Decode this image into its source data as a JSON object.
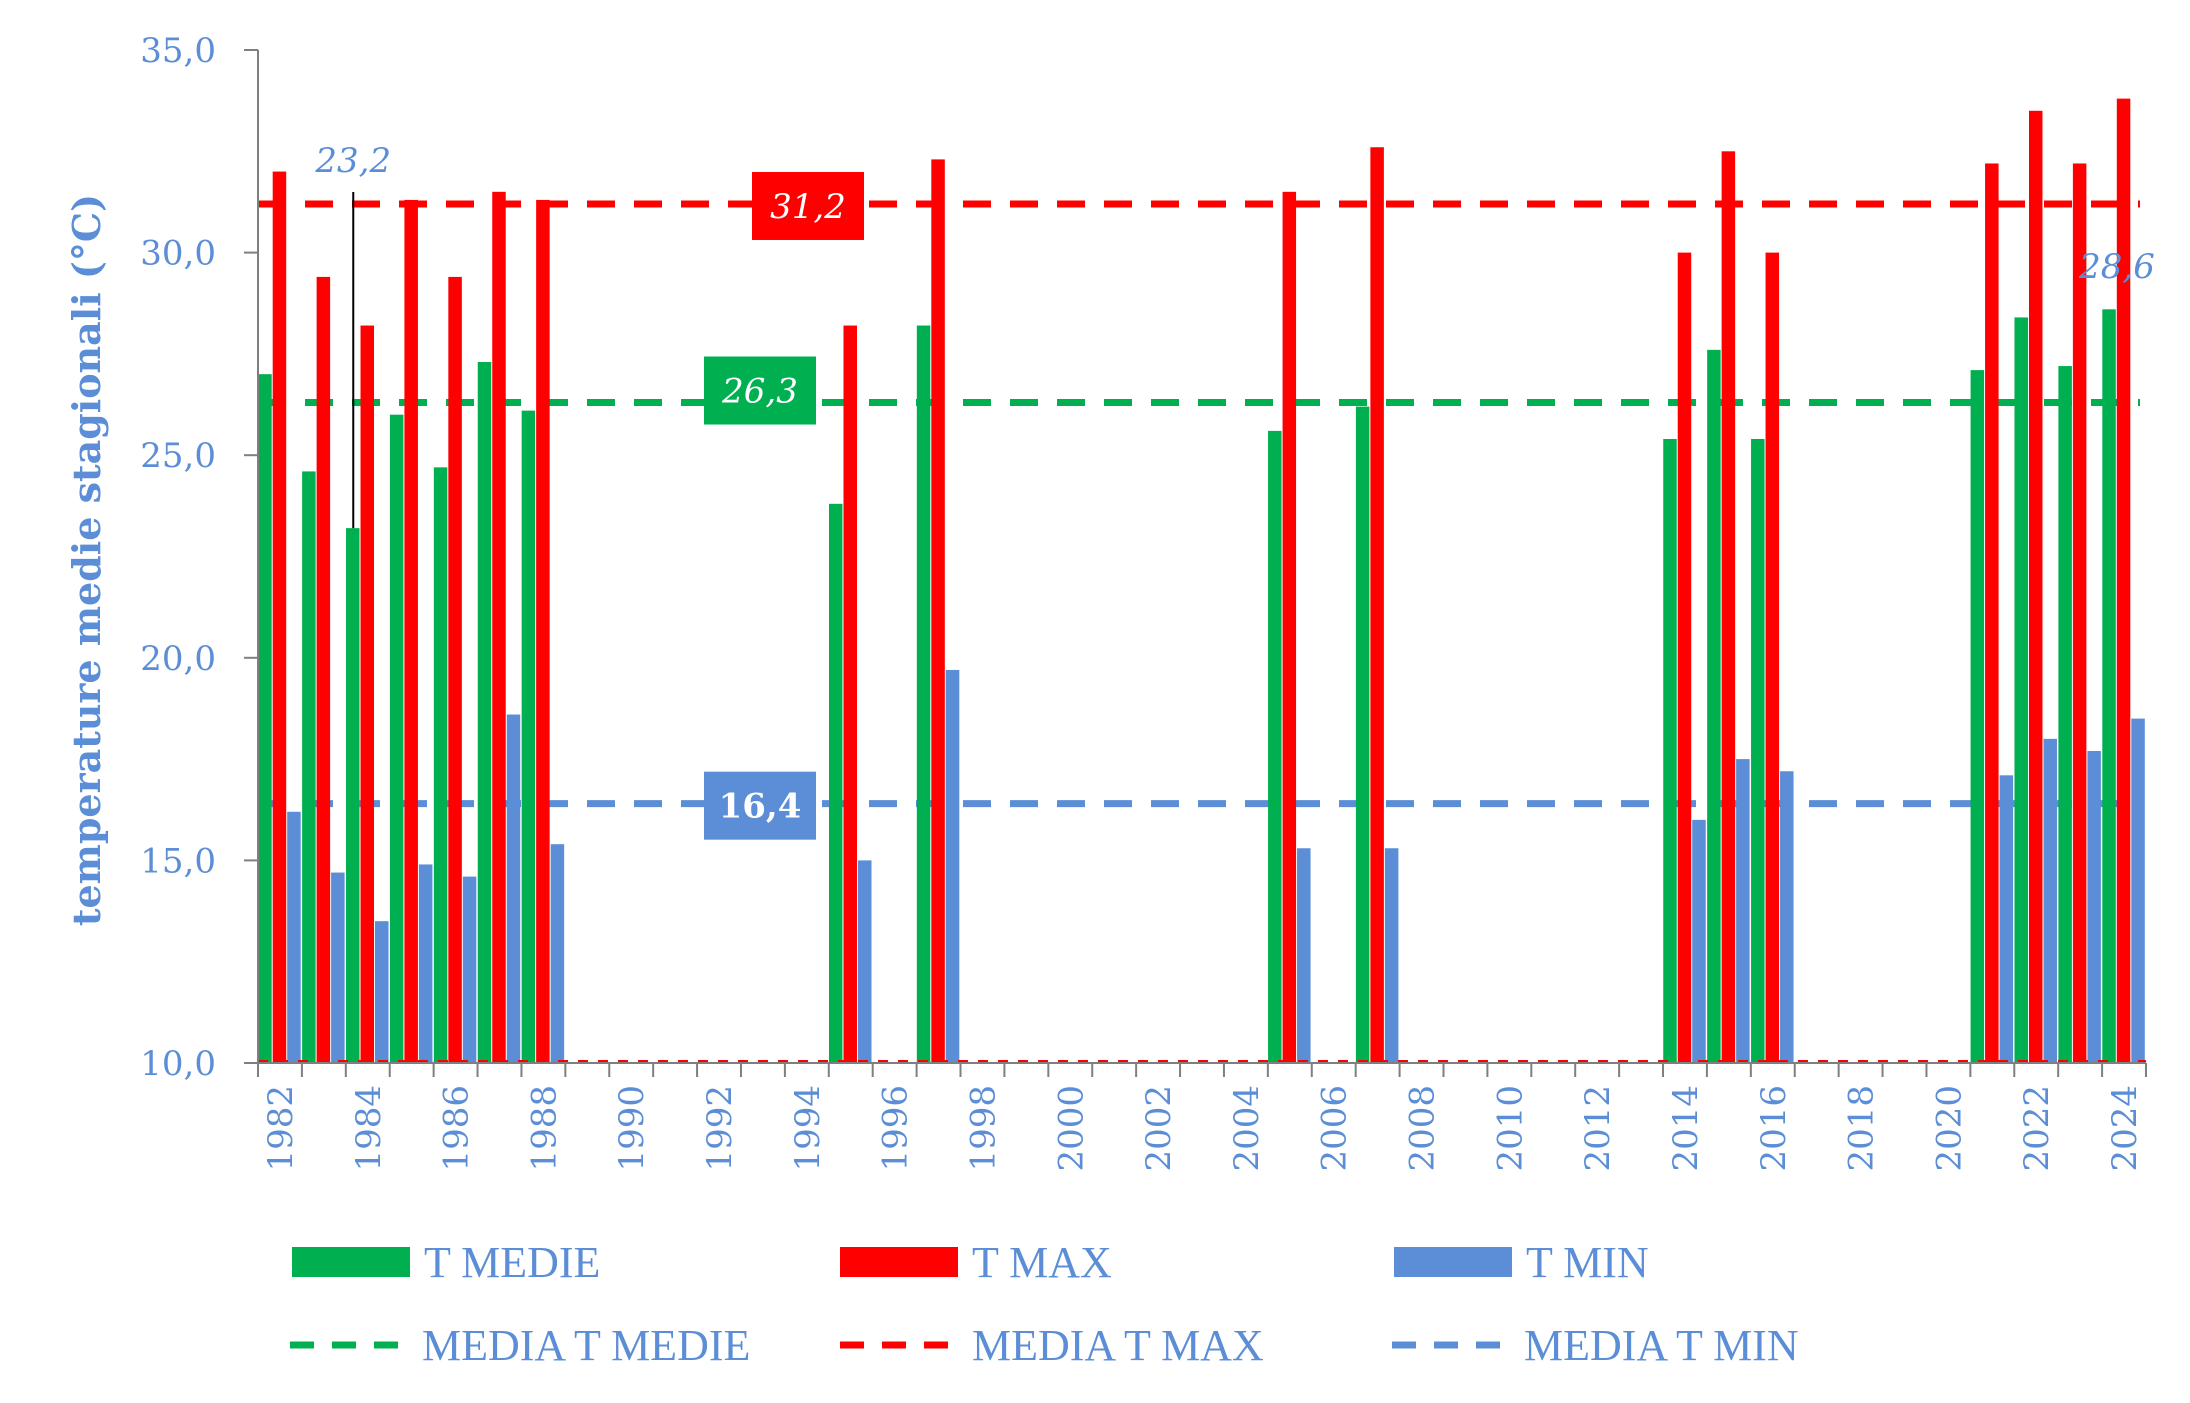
{
  "chart_data": {
    "type": "bar",
    "ylabel": "temperature medie stagionali (°C)",
    "ylim": [
      10,
      35
    ],
    "yticks": [
      "10,0",
      "15,0",
      "20,0",
      "25,0",
      "30,0",
      "35,0"
    ],
    "categories": [
      "1982",
      "1983",
      "1984",
      "1985",
      "1986",
      "1987",
      "1988",
      "1989",
      "1990",
      "1991",
      "1992",
      "1993",
      "1994",
      "1995",
      "1996",
      "1997",
      "1998",
      "1999",
      "2000",
      "2001",
      "2002",
      "2003",
      "2004",
      "2005",
      "2006",
      "2007",
      "2008",
      "2009",
      "2010",
      "2011",
      "2012",
      "2013",
      "2014",
      "2015",
      "2016",
      "2017",
      "2018",
      "2019",
      "2020",
      "2021",
      "2022",
      "2023",
      "2024"
    ],
    "xtick_labels": [
      "1982",
      "1984",
      "1986",
      "1988",
      "1990",
      "1992",
      "1994",
      "1996",
      "1998",
      "2000",
      "2002",
      "2004",
      "2006",
      "2008",
      "2010",
      "2012",
      "2014",
      "2016",
      "2018",
      "2020",
      "2022",
      "2024"
    ],
    "series": [
      {
        "name": "T MEDIE",
        "color": "#00B050",
        "values": [
          27.0,
          24.6,
          23.2,
          26.0,
          24.7,
          27.3,
          26.1,
          null,
          null,
          null,
          null,
          null,
          null,
          23.8,
          null,
          28.2,
          null,
          null,
          null,
          null,
          null,
          null,
          null,
          25.6,
          null,
          26.2,
          null,
          null,
          null,
          null,
          null,
          null,
          25.4,
          27.6,
          25.4,
          null,
          null,
          null,
          null,
          27.1,
          28.4,
          27.2,
          28.6
        ]
      },
      {
        "name": "T MAX",
        "color": "#FF0000",
        "values": [
          32.0,
          29.4,
          28.2,
          31.3,
          29.4,
          31.5,
          31.3,
          null,
          null,
          null,
          null,
          null,
          null,
          28.2,
          null,
          32.3,
          null,
          null,
          null,
          null,
          null,
          null,
          null,
          31.5,
          null,
          32.6,
          null,
          null,
          null,
          null,
          null,
          null,
          30.0,
          32.5,
          30.0,
          null,
          null,
          null,
          null,
          32.2,
          33.5,
          32.2,
          33.8
        ]
      },
      {
        "name": "T MIN",
        "color": "#5B8ED6",
        "values": [
          16.2,
          14.7,
          13.5,
          14.9,
          14.6,
          18.6,
          15.4,
          null,
          null,
          null,
          null,
          null,
          null,
          15.0,
          null,
          19.7,
          null,
          null,
          null,
          null,
          null,
          null,
          null,
          15.3,
          null,
          15.3,
          null,
          null,
          null,
          null,
          null,
          null,
          16.0,
          17.5,
          17.2,
          null,
          null,
          null,
          null,
          17.1,
          18.0,
          17.7,
          18.5
        ]
      }
    ],
    "reference_lines": [
      {
        "name": "MEDIA T MEDIE",
        "value": 26.3,
        "label": "26,3",
        "color": "#00B050"
      },
      {
        "name": "MEDIA T MAX",
        "value": 31.2,
        "label": "31,2",
        "color": "#FF0000"
      },
      {
        "name": "MEDIA T MIN",
        "value": 16.4,
        "label": "16,4",
        "color": "#5B8ED6"
      }
    ],
    "annotations": [
      {
        "text": "23,2",
        "category": "1984",
        "value": 23.2
      },
      {
        "text": "28,6",
        "category": "2024",
        "value": 28.6
      }
    ],
    "legend": [
      {
        "label": "T MEDIE",
        "kind": "bar",
        "color": "#00B050"
      },
      {
        "label": "T MAX",
        "kind": "bar",
        "color": "#FF0000"
      },
      {
        "label": "T MIN",
        "kind": "bar",
        "color": "#5B8ED6"
      },
      {
        "label": "MEDIA T MEDIE",
        "kind": "dash",
        "color": "#00B050"
      },
      {
        "label": "MEDIA T MAX",
        "kind": "dash",
        "color": "#FF0000"
      },
      {
        "label": "MEDIA T MIN",
        "kind": "dash",
        "color": "#5B8ED6"
      }
    ],
    "legend_position": "bottom",
    "grid": false
  }
}
